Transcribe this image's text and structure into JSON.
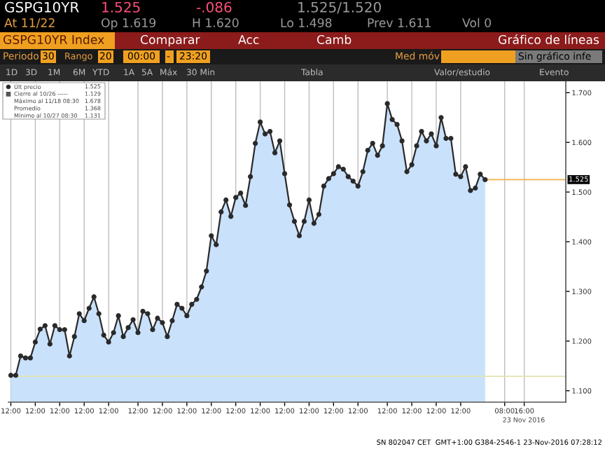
{
  "chart_data": {
    "type": "area",
    "categories": [
      "12:00",
      null,
      null,
      null,
      null,
      "12:00",
      null,
      null,
      null,
      null,
      "12:00",
      null,
      null,
      null,
      null,
      "12:00",
      null,
      null,
      null,
      null,
      "12:00",
      null,
      null,
      null,
      null,
      null,
      "12:00",
      null,
      null,
      null,
      null,
      "12:00",
      null,
      null,
      null,
      null,
      "12:00",
      null,
      null,
      null,
      null,
      "12:00",
      null,
      null,
      null,
      null,
      "12:00",
      null,
      null,
      null,
      null,
      "12:00",
      null,
      null,
      null,
      null,
      "12:00",
      null,
      null,
      null,
      null,
      "12:00",
      null,
      null,
      null,
      null,
      "12:00",
      null,
      null,
      null,
      null,
      "12:00",
      null,
      null,
      null,
      null,
      null,
      "12:00",
      null,
      null,
      null,
      null,
      "12:00",
      null,
      null,
      null,
      null,
      "12:00",
      null,
      null,
      null,
      null,
      "12:00",
      null,
      null,
      null,
      null,
      null,
      null,
      null,
      null,
      "08:00",
      null,
      null,
      null,
      "16:00",
      null,
      null,
      null,
      null,
      null,
      null,
      null,
      null
    ],
    "series": [
      {
        "color": "#2a2a2a",
        "marker": "circle",
        "values": [
          1.131,
          1.131,
          1.17,
          1.166,
          1.166,
          1.198,
          1.224,
          1.231,
          1.194,
          1.231,
          1.223,
          1.223,
          1.17,
          1.209,
          1.255,
          1.241,
          1.266,
          1.289,
          1.255,
          1.212,
          1.198,
          1.217,
          1.251,
          1.209,
          1.227,
          1.243,
          1.217,
          1.26,
          1.255,
          1.223,
          1.246,
          1.237,
          1.209,
          1.241,
          1.274,
          1.266,
          1.251,
          1.274,
          1.284,
          1.309,
          1.341,
          1.412,
          1.394,
          1.46,
          1.484,
          1.451,
          1.489,
          1.498,
          1.473,
          1.531,
          1.598,
          1.641,
          1.617,
          1.622,
          1.579,
          1.603,
          1.537,
          1.474,
          1.441,
          1.412,
          1.441,
          1.484,
          1.437,
          1.455,
          1.512,
          1.527,
          1.537,
          1.551,
          1.546,
          1.531,
          1.522,
          1.512,
          1.541,
          1.584,
          1.598,
          1.574,
          1.593,
          1.678,
          1.646,
          1.636,
          1.603,
          1.541,
          1.555,
          1.593,
          1.622,
          1.603,
          1.617,
          1.593,
          1.65,
          1.608,
          1.608,
          1.536,
          1.531,
          1.551,
          1.503,
          1.508,
          1.536,
          1.525,
          null,
          null,
          null,
          null,
          null,
          null,
          null,
          null,
          null,
          null,
          null,
          null,
          null,
          null,
          null,
          null
        ]
      }
    ],
    "ylim": [
      1.077,
      1.723
    ],
    "yticks": [
      {
        "value": 1.1,
        "label": "1.100"
      },
      {
        "value": 1.2,
        "label": "1.200"
      },
      {
        "value": 1.3,
        "label": "1.300"
      },
      {
        "value": 1.4,
        "label": "1.400"
      },
      {
        "value": 1.5,
        "label": "1.500"
      },
      {
        "value": 1.6,
        "label": "1.600"
      },
      {
        "value": 1.7,
        "label": "1.700"
      }
    ],
    "grid": "x",
    "ref_lines": [
      {
        "axis": "y",
        "value": 1.129,
        "color": "#e3e3b0"
      },
      {
        "axis": "y",
        "value": 1.525,
        "label": "1.525",
        "color": "#f2b04a"
      }
    ],
    "annotations": [
      "GSPG10YR",
      "1.525",
      "-.086",
      "1.525/1.520",
      "At 11/22",
      "Op 1.619",
      "H 1.620",
      "Lo 1.498",
      "Prev 1.611",
      "Vol 0",
      "GSPG10YR Index",
      "Comparar",
      "Acc",
      "Camb",
      "Gráfico de líneas",
      "Periodo",
      "30",
      "Rango",
      "20",
      "00:00",
      "-",
      "23:20",
      "Med móv",
      "Sin gráfico infe",
      "1D",
      "3D",
      "1M",
      "6M",
      "YTD",
      "1A",
      "5A",
      "Máx",
      "30 Min",
      "Tabla",
      "Valor/estudio",
      "Evento",
      "Últ precio",
      "1.525",
      "Cierre al 10/26 -----",
      "1.129",
      "Máximo al 11/18 08:30",
      "1.678",
      "Promedio",
      "1.368",
      "Mínimo al 10/27 08:30",
      "1.131",
      "23 Nov 2016",
      "SN 802047 CET  GMT+1:00 G384-2546-1 23-Nov-2016 07:28:12"
    ]
  }
}
